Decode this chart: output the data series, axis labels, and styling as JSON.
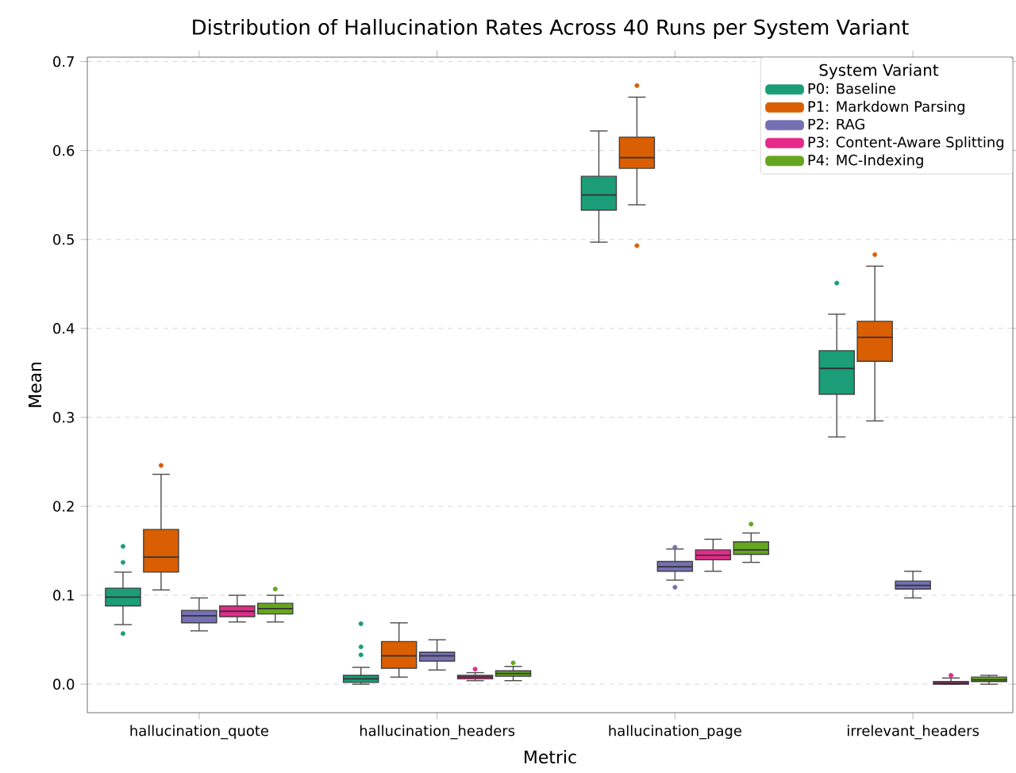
{
  "chart_data": {
    "type": "box",
    "title": "Distribution of Hallucination Rates Across 40 Runs per System Variant",
    "xlabel": "Metric",
    "ylabel": "Mean",
    "legend_title": "System Variant",
    "legend": "top right",
    "grid": "y",
    "categories": [
      "hallucination_quote",
      "hallucination_headers",
      "hallucination_page",
      "irrelevant_headers"
    ],
    "ylim": [
      -0.032,
      0.705
    ],
    "yticks": [
      {
        "value": 0,
        "label": "0.0"
      },
      0.1,
      0.2,
      0.3,
      0.4,
      0.5,
      0.6,
      0.7
    ],
    "series": [
      {
        "name": "P0: Baseline",
        "color": "#1b9e77",
        "boxes": [
          {
            "low": 0.067,
            "q1": 0.088,
            "median": 0.098,
            "q3": 0.108,
            "high": 0.126,
            "outliers": [
              0.155,
              0.137,
              0.057
            ]
          },
          {
            "low": 0.0,
            "q1": 0.002,
            "median": 0.006,
            "q3": 0.01,
            "high": 0.019,
            "outliers": [
              0.068,
              0.042,
              0.033
            ]
          },
          {
            "low": 0.497,
            "q1": 0.533,
            "median": 0.55,
            "q3": 0.571,
            "high": 0.622
          },
          {
            "low": 0.278,
            "q1": 0.326,
            "median": 0.355,
            "q3": 0.375,
            "high": 0.416,
            "outliers": [
              0.451
            ]
          }
        ]
      },
      {
        "name": "P1: Markdown Parsing",
        "color": "#d95f02",
        "boxes": [
          {
            "low": 0.106,
            "q1": 0.126,
            "median": 0.143,
            "q3": 0.174,
            "high": 0.236,
            "outliers": [
              0.246
            ]
          },
          {
            "low": 0.008,
            "q1": 0.018,
            "median": 0.032,
            "q3": 0.048,
            "high": 0.069
          },
          {
            "low": 0.539,
            "q1": 0.58,
            "median": 0.592,
            "q3": 0.615,
            "high": 0.66,
            "outliers": [
              0.673,
              0.493
            ]
          },
          {
            "low": 0.296,
            "q1": 0.363,
            "median": 0.39,
            "q3": 0.408,
            "high": 0.47,
            "outliers": [
              0.483
            ]
          }
        ]
      },
      {
        "name": "P2: RAG",
        "color": "#7570b3",
        "boxes": [
          {
            "low": 0.06,
            "q1": 0.069,
            "median": 0.077,
            "q3": 0.083,
            "high": 0.097
          },
          {
            "low": 0.016,
            "q1": 0.026,
            "median": 0.032,
            "q3": 0.036,
            "high": 0.05
          },
          {
            "low": 0.117,
            "q1": 0.127,
            "median": 0.132,
            "q3": 0.138,
            "high": 0.152,
            "outliers": [
              0.154,
              0.109
            ]
          },
          {
            "low": 0.097,
            "q1": 0.107,
            "median": 0.111,
            "q3": 0.116,
            "high": 0.127
          }
        ]
      },
      {
        "name": "P3: Content-Aware Splitting",
        "color": "#e7298a",
        "boxes": [
          {
            "low": 0.07,
            "q1": 0.076,
            "median": 0.082,
            "q3": 0.088,
            "high": 0.1
          },
          {
            "low": 0.004,
            "q1": 0.006,
            "median": 0.008,
            "q3": 0.01,
            "high": 0.013,
            "outliers": [
              0.017
            ]
          },
          {
            "low": 0.127,
            "q1": 0.14,
            "median": 0.145,
            "q3": 0.151,
            "high": 0.163
          },
          {
            "low": 0.0,
            "q1": 0.0,
            "median": 0.001,
            "q3": 0.003,
            "high": 0.007,
            "outliers": [
              0.01
            ]
          }
        ]
      },
      {
        "name": "P4: MC-Indexing",
        "color": "#66a61e",
        "boxes": [
          {
            "low": 0.07,
            "q1": 0.079,
            "median": 0.085,
            "q3": 0.091,
            "high": 0.1,
            "outliers": [
              0.107
            ]
          },
          {
            "low": 0.004,
            "q1": 0.009,
            "median": 0.012,
            "q3": 0.015,
            "high": 0.02,
            "outliers": [
              0.024
            ]
          },
          {
            "low": 0.137,
            "q1": 0.146,
            "median": 0.151,
            "q3": 0.16,
            "high": 0.17,
            "outliers": [
              0.18
            ]
          },
          {
            "low": 0.0,
            "q1": 0.003,
            "median": 0.005,
            "q3": 0.008,
            "high": 0.01
          }
        ]
      }
    ]
  }
}
